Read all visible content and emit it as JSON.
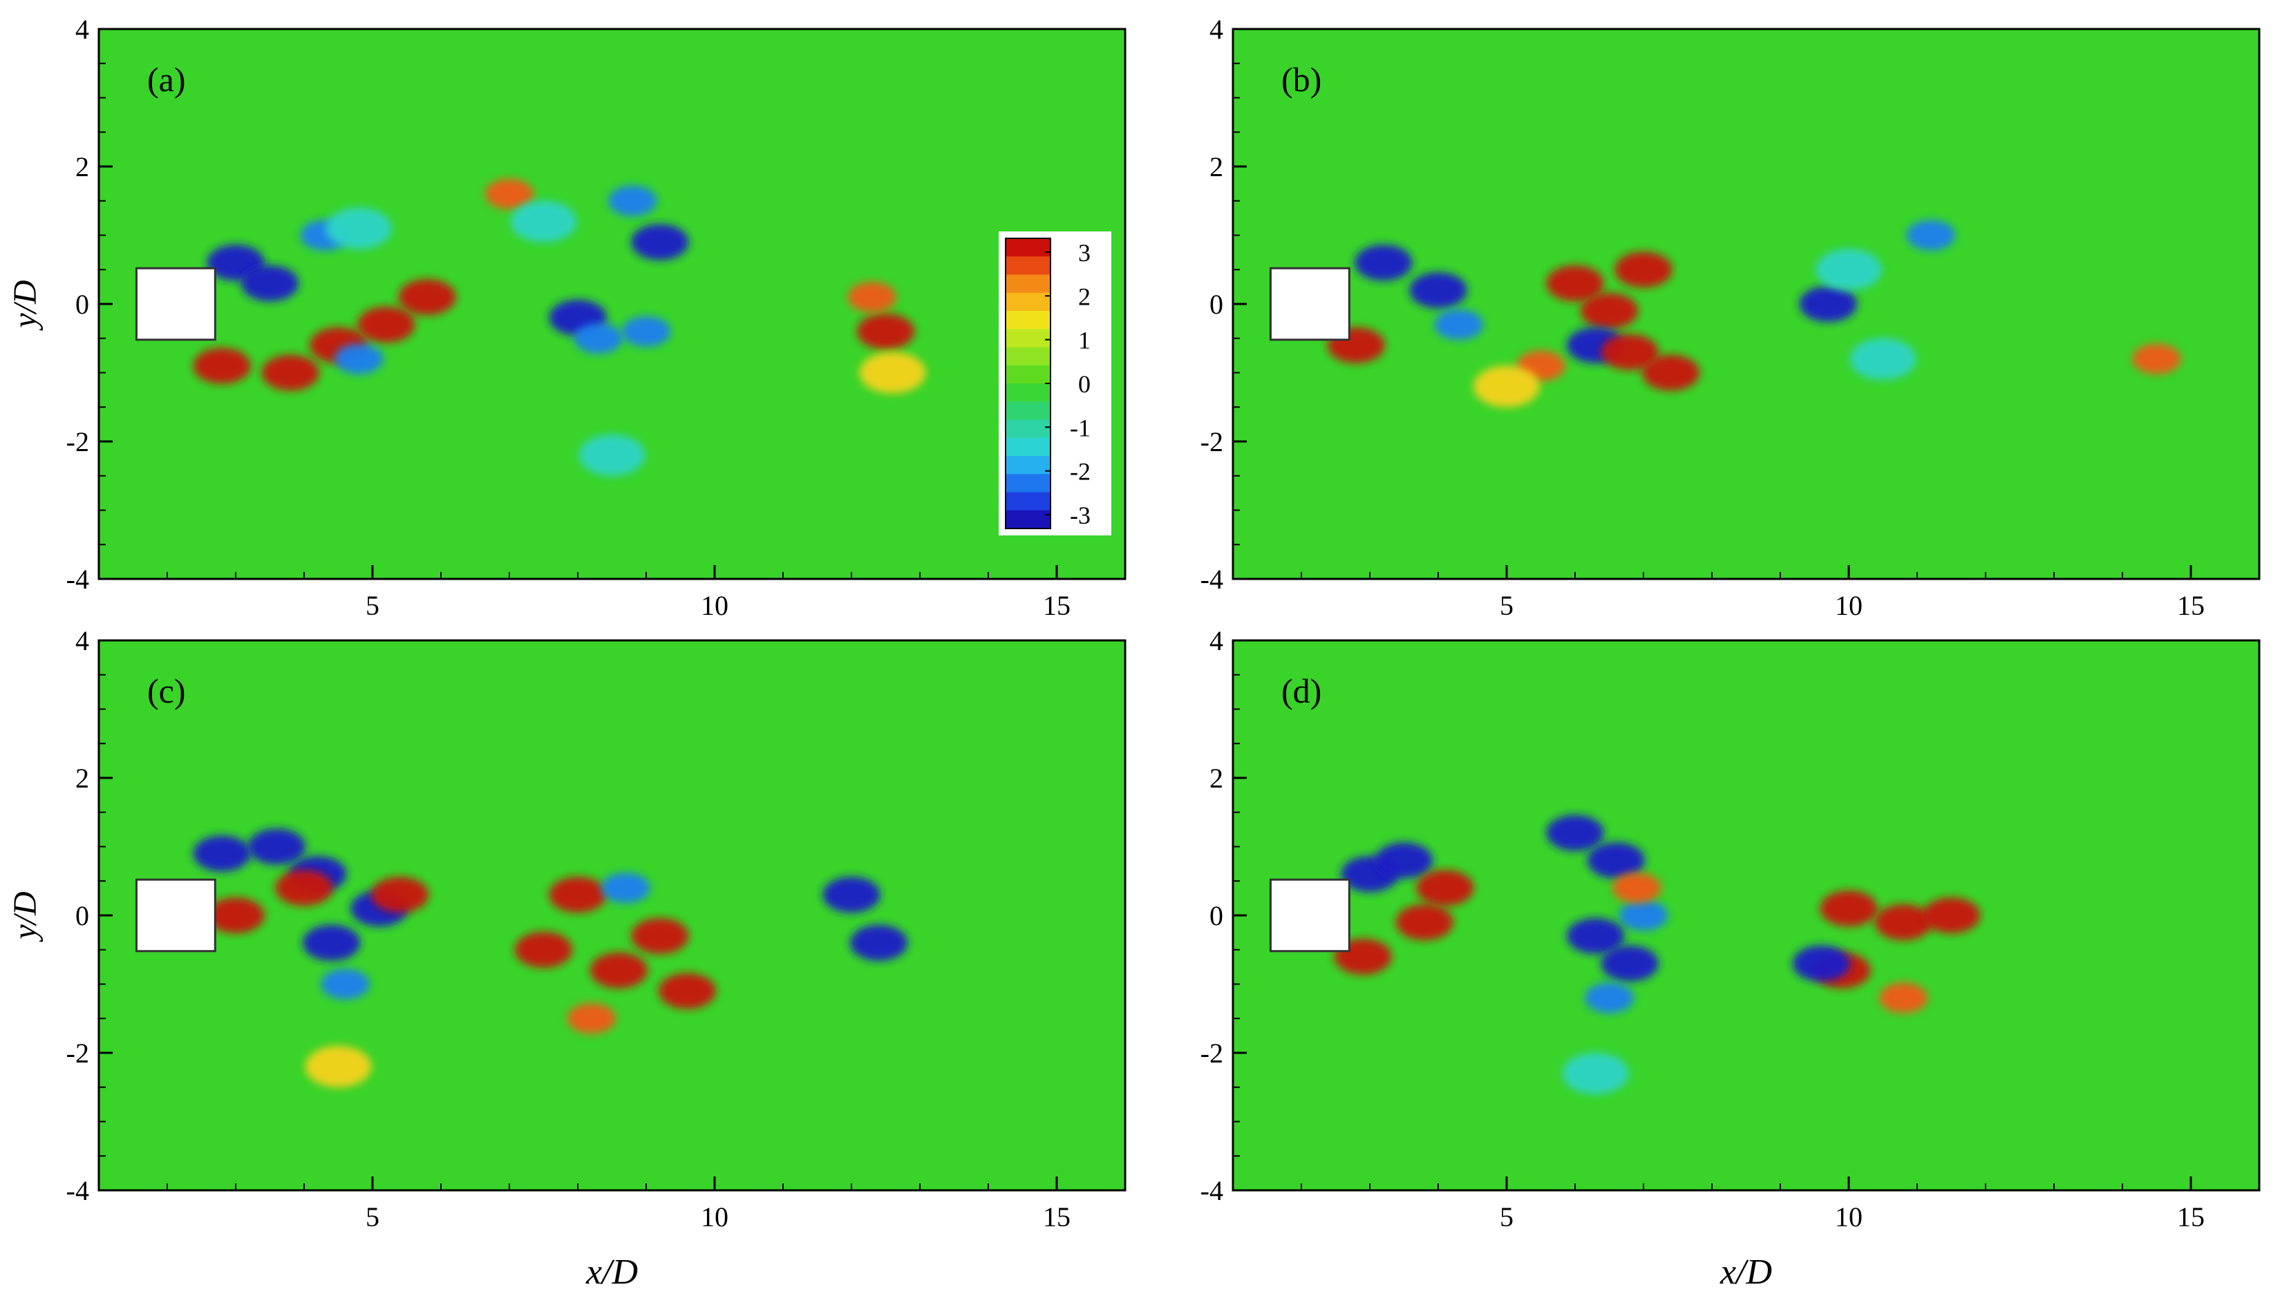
{
  "chart_data": [
    {
      "type": "heatmap",
      "panel_label": "(a)",
      "xlim": [
        1,
        16
      ],
      "ylim": [
        -4,
        4
      ],
      "x_ticks": [
        "5",
        "10",
        "15"
      ],
      "y_ticks": [
        "4",
        "2",
        "0",
        "-2",
        "-4"
      ],
      "ylabel": "y/D",
      "xlabel": "",
      "vortices": [
        {
          "x": 3.0,
          "y": 0.6,
          "v": -3
        },
        {
          "x": 3.5,
          "y": 0.3,
          "v": -3
        },
        {
          "x": 2.8,
          "y": -0.9,
          "v": 3
        },
        {
          "x": 3.8,
          "y": -1.0,
          "v": 3
        },
        {
          "x": 4.5,
          "y": -0.6,
          "v": 3
        },
        {
          "x": 5.2,
          "y": -0.3,
          "v": 3
        },
        {
          "x": 5.8,
          "y": 0.1,
          "v": 3
        },
        {
          "x": 4.8,
          "y": -0.8,
          "v": -2
        },
        {
          "x": 4.3,
          "y": 1.0,
          "v": -2
        },
        {
          "x": 4.8,
          "y": 1.1,
          "v": -1
        },
        {
          "x": 7.0,
          "y": 1.6,
          "v": 2
        },
        {
          "x": 7.5,
          "y": 1.2,
          "v": -1
        },
        {
          "x": 8.0,
          "y": -0.2,
          "v": -3
        },
        {
          "x": 8.3,
          "y": -0.5,
          "v": -2
        },
        {
          "x": 8.8,
          "y": 1.5,
          "v": -2
        },
        {
          "x": 9.2,
          "y": 0.9,
          "v": -3
        },
        {
          "x": 9.0,
          "y": -0.4,
          "v": -2
        },
        {
          "x": 8.5,
          "y": -2.2,
          "v": -1
        },
        {
          "x": 12.5,
          "y": -0.4,
          "v": 3
        },
        {
          "x": 12.3,
          "y": 0.1,
          "v": 2
        },
        {
          "x": 12.6,
          "y": -1.0,
          "v": 1
        }
      ]
    },
    {
      "type": "heatmap",
      "panel_label": "(b)",
      "xlim": [
        1,
        16
      ],
      "ylim": [
        -4,
        4
      ],
      "x_ticks": [
        "5",
        "10",
        "15"
      ],
      "y_ticks": [
        "4",
        "2",
        "0",
        "-2",
        "-4"
      ],
      "ylabel": "",
      "xlabel": "",
      "vortices": [
        {
          "x": 3.2,
          "y": 0.6,
          "v": -3
        },
        {
          "x": 4.0,
          "y": 0.2,
          "v": -3
        },
        {
          "x": 4.3,
          "y": -0.3,
          "v": -2
        },
        {
          "x": 2.8,
          "y": -0.6,
          "v": 3
        },
        {
          "x": 6.0,
          "y": 0.3,
          "v": 3
        },
        {
          "x": 6.5,
          "y": -0.1,
          "v": 3
        },
        {
          "x": 7.0,
          "y": 0.5,
          "v": 3
        },
        {
          "x": 6.3,
          "y": -0.6,
          "v": -3
        },
        {
          "x": 6.8,
          "y": -0.7,
          "v": 3
        },
        {
          "x": 7.4,
          "y": -1.0,
          "v": 3
        },
        {
          "x": 5.5,
          "y": -0.9,
          "v": 2
        },
        {
          "x": 5.0,
          "y": -1.2,
          "v": 1
        },
        {
          "x": 9.7,
          "y": 0.0,
          "v": -3
        },
        {
          "x": 10.0,
          "y": 0.5,
          "v": -1
        },
        {
          "x": 11.2,
          "y": 1.0,
          "v": -2
        },
        {
          "x": 10.5,
          "y": -0.8,
          "v": -1
        },
        {
          "x": 14.5,
          "y": -0.8,
          "v": 2
        }
      ]
    },
    {
      "type": "heatmap",
      "panel_label": "(c)",
      "xlim": [
        1,
        16
      ],
      "ylim": [
        -4,
        4
      ],
      "x_ticks": [
        "5",
        "10",
        "15"
      ],
      "y_ticks": [
        "4",
        "2",
        "0",
        "-2",
        "-4"
      ],
      "ylabel": "y/D",
      "xlabel": "x/D",
      "vortices": [
        {
          "x": 2.8,
          "y": 0.9,
          "v": -3
        },
        {
          "x": 3.6,
          "y": 1.0,
          "v": -3
        },
        {
          "x": 4.2,
          "y": 0.6,
          "v": -3
        },
        {
          "x": 4.4,
          "y": -0.4,
          "v": -3
        },
        {
          "x": 4.6,
          "y": -1.0,
          "v": -2
        },
        {
          "x": 5.1,
          "y": 0.1,
          "v": -3
        },
        {
          "x": 3.0,
          "y": 0.0,
          "v": 3
        },
        {
          "x": 4.0,
          "y": 0.4,
          "v": 3
        },
        {
          "x": 5.4,
          "y": 0.3,
          "v": 3
        },
        {
          "x": 7.5,
          "y": -0.5,
          "v": 3
        },
        {
          "x": 8.0,
          "y": 0.3,
          "v": 3
        },
        {
          "x": 8.6,
          "y": -0.8,
          "v": 3
        },
        {
          "x": 9.2,
          "y": -0.3,
          "v": 3
        },
        {
          "x": 9.6,
          "y": -1.1,
          "v": 3
        },
        {
          "x": 8.7,
          "y": 0.4,
          "v": -2
        },
        {
          "x": 8.2,
          "y": -1.5,
          "v": 2
        },
        {
          "x": 12.0,
          "y": 0.3,
          "v": -3
        },
        {
          "x": 12.4,
          "y": -0.4,
          "v": -3
        },
        {
          "x": 4.5,
          "y": -2.2,
          "v": 1
        }
      ]
    },
    {
      "type": "heatmap",
      "panel_label": "(d)",
      "xlim": [
        1,
        16
      ],
      "ylim": [
        -4,
        4
      ],
      "x_ticks": [
        "5",
        "10",
        "15"
      ],
      "y_ticks": [
        "4",
        "2",
        "0",
        "-2",
        "-4"
      ],
      "ylabel": "",
      "xlabel": "x/D",
      "vortices": [
        {
          "x": 3.0,
          "y": 0.6,
          "v": -3
        },
        {
          "x": 3.5,
          "y": 0.8,
          "v": -3
        },
        {
          "x": 2.9,
          "y": -0.6,
          "v": 3
        },
        {
          "x": 3.8,
          "y": -0.1,
          "v": 3
        },
        {
          "x": 4.1,
          "y": 0.4,
          "v": 3
        },
        {
          "x": 6.0,
          "y": 1.2,
          "v": -3
        },
        {
          "x": 6.6,
          "y": 0.8,
          "v": -3
        },
        {
          "x": 7.0,
          "y": 0.0,
          "v": -2
        },
        {
          "x": 6.3,
          "y": -0.3,
          "v": -3
        },
        {
          "x": 6.8,
          "y": -0.7,
          "v": -3
        },
        {
          "x": 6.5,
          "y": -1.2,
          "v": -2
        },
        {
          "x": 6.9,
          "y": 0.4,
          "v": 2
        },
        {
          "x": 10.0,
          "y": 0.1,
          "v": 3
        },
        {
          "x": 10.8,
          "y": -0.1,
          "v": 3
        },
        {
          "x": 11.5,
          "y": 0.0,
          "v": 3
        },
        {
          "x": 9.9,
          "y": -0.8,
          "v": 3
        },
        {
          "x": 9.6,
          "y": -0.7,
          "v": -3
        },
        {
          "x": 10.8,
          "y": -1.2,
          "v": 2
        },
        {
          "x": 6.3,
          "y": -2.3,
          "v": -1
        }
      ]
    }
  ],
  "colorbar": {
    "labels": [
      "3",
      "2",
      "1",
      "0",
      "-1",
      "-2",
      "-3"
    ],
    "colors": [
      "#ca0f0a",
      "#e84a12",
      "#f48a16",
      "#f7b81a",
      "#f0e21a",
      "#bde81f",
      "#8fe322",
      "#5edb1f",
      "#39d636",
      "#2fd470",
      "#2ed3a6",
      "#2cd3d3",
      "#27b0f0",
      "#1f77f0",
      "#1d40e2",
      "#1a14b8"
    ]
  },
  "colors": {
    "background_field": "#39d32a",
    "cylinder_fill": "#ffffff",
    "axis_line": "#000000"
  }
}
